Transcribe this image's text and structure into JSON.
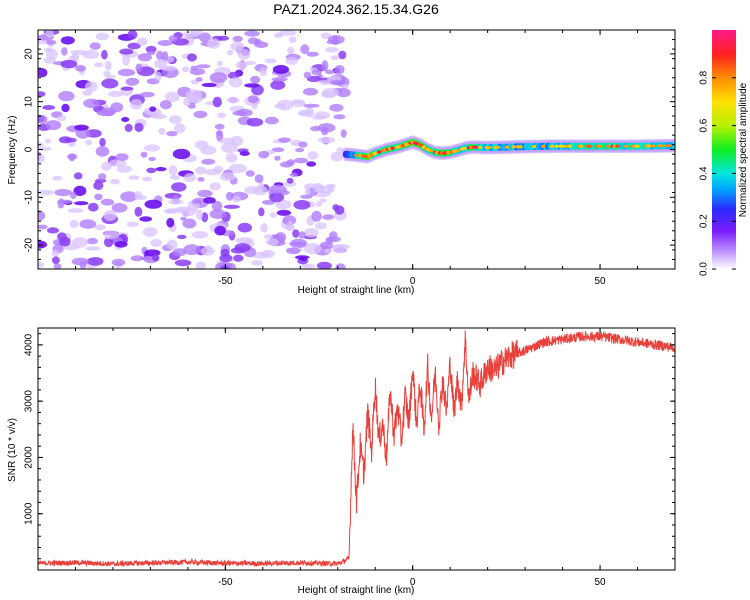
{
  "figure_title": "PAZ1.2024.362.15.34.G26",
  "colors": {
    "snr_line": "#e8413c",
    "frame": "#000000",
    "background": "#ffffff"
  },
  "chart_data": [
    {
      "type": "heatmap",
      "title": "",
      "xlabel": "Height of straight line (km)",
      "ylabel": "Frequency (Hz)",
      "xlim": [
        -100,
        70
      ],
      "ylim": [
        -25,
        25
      ],
      "x_ticks": [
        -50,
        0,
        50
      ],
      "y_ticks": [
        -20,
        -10,
        0,
        10,
        20
      ],
      "colorbar": {
        "label": "Normalized spectral amplitude",
        "range": [
          0,
          1
        ],
        "ticks": [
          "0.0",
          "0.2",
          "0.4",
          "0.6",
          "0.8"
        ]
      },
      "noise_region_x": [
        -100,
        -18
      ],
      "signal_ridge": {
        "x": [
          -18,
          -15,
          -12,
          -10,
          -7,
          -4,
          -2,
          0,
          2,
          4,
          6,
          8,
          10,
          12,
          14,
          16,
          20,
          25,
          30,
          40,
          50,
          60,
          70
        ],
        "freq": [
          -1,
          -1.2,
          -1.5,
          -0.8,
          0,
          0.5,
          1,
          1.5,
          1,
          0,
          -0.6,
          -0.8,
          -0.6,
          -0.2,
          0.3,
          0.5,
          0.4,
          0.5,
          0.6,
          0.7,
          0.7,
          0.7,
          0.8
        ],
        "amplitude": [
          0.4,
          0.6,
          0.9,
          0.7,
          0.75,
          0.7,
          0.8,
          0.85,
          0.8,
          0.7,
          0.75,
          0.85,
          0.8,
          0.6,
          0.7,
          0.8,
          0.6,
          0.55,
          0.55,
          0.6,
          0.7,
          0.65,
          0.6
        ]
      }
    },
    {
      "type": "line",
      "title": "",
      "xlabel": "Height of straight line (km)",
      "ylabel": "SNR (10 * v/v)",
      "xlim": [
        -100,
        70
      ],
      "ylim": [
        0,
        4300
      ],
      "x_ticks": [
        -50,
        0,
        50
      ],
      "y_ticks": [
        1000,
        2000,
        3000,
        4000
      ],
      "series": [
        {
          "x": [
            -100,
            -90,
            -80,
            -70,
            -60,
            -50,
            -40,
            -30,
            -20,
            -17,
            -16,
            -15,
            -14,
            -13,
            -12,
            -11,
            -10,
            -9,
            -8,
            -7,
            -6,
            -5,
            -4,
            -3,
            -2,
            -1,
            0,
            1,
            2,
            3,
            4,
            5,
            6,
            7,
            8,
            9,
            10,
            11,
            12,
            13,
            14,
            15,
            16,
            18,
            20,
            22,
            24,
            26,
            28,
            30,
            35,
            40,
            45,
            50,
            55,
            60,
            65,
            70
          ],
          "y": [
            120,
            130,
            110,
            125,
            140,
            120,
            115,
            130,
            110,
            200,
            2600,
            1200,
            2200,
            1700,
            2800,
            2100,
            3300,
            2300,
            2600,
            2000,
            3200,
            2400,
            2900,
            2300,
            3100,
            2600,
            3600,
            2600,
            3300,
            2500,
            3600,
            2700,
            3500,
            2600,
            3400,
            2800,
            3700,
            2800,
            3400,
            2900,
            4100,
            3000,
            3500,
            3300,
            3600,
            3550,
            3700,
            3800,
            3850,
            3900,
            4050,
            4100,
            4150,
            4150,
            4100,
            4050,
            4000,
            3950
          ]
        }
      ]
    }
  ]
}
